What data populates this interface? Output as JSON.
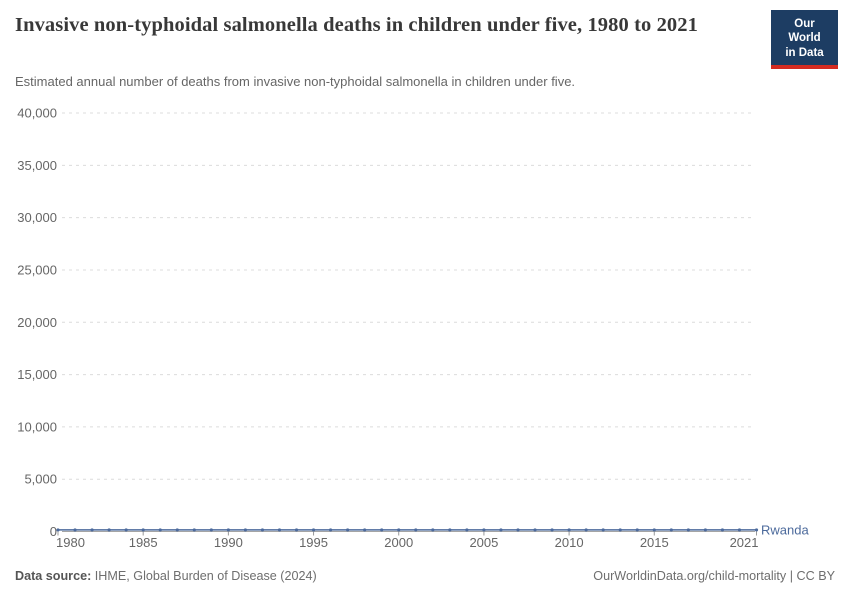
{
  "header": {
    "title": "Invasive non-typhoidal salmonella deaths in children under five, 1980 to 2021",
    "subtitle": "Estimated annual number of deaths from invasive non-typhoidal salmonella in children under five."
  },
  "logo": {
    "line1": "Our World",
    "line2": "in Data",
    "bg_color": "#1d3d63",
    "stripe_color": "#d42b21"
  },
  "chart_data": {
    "type": "line",
    "title": "Invasive non-typhoidal salmonella deaths in children under five, 1980 to 2021",
    "xlabel": "",
    "ylabel": "",
    "xlim": [
      1980,
      2021
    ],
    "ylim": [
      0,
      40000
    ],
    "grid": "horizontal-dashed",
    "legend": "entity-label-at-line-end",
    "x": [
      1980,
      1981,
      1982,
      1983,
      1984,
      1985,
      1986,
      1987,
      1988,
      1989,
      1990,
      1991,
      1992,
      1993,
      1994,
      1995,
      1996,
      1997,
      1998,
      1999,
      2000,
      2001,
      2002,
      2003,
      2004,
      2005,
      2006,
      2007,
      2008,
      2009,
      2010,
      2011,
      2012,
      2013,
      2014,
      2015,
      2016,
      2017,
      2018,
      2019,
      2020,
      2021
    ],
    "series": [
      {
        "name": "Rwanda",
        "color": "#4c6a9c",
        "values": [
          150,
          150,
          150,
          150,
          150,
          150,
          150,
          150,
          150,
          150,
          150,
          150,
          150,
          150,
          150,
          150,
          150,
          150,
          150,
          150,
          150,
          150,
          150,
          150,
          150,
          150,
          150,
          150,
          150,
          150,
          150,
          150,
          150,
          150,
          150,
          150,
          150,
          150,
          150,
          150,
          150,
          150
        ]
      }
    ],
    "yticks": [
      {
        "value": 0,
        "label": "0"
      },
      {
        "value": 5000,
        "label": "5,000"
      },
      {
        "value": 10000,
        "label": "10,000"
      },
      {
        "value": 15000,
        "label": "15,000"
      },
      {
        "value": 20000,
        "label": "20,000"
      },
      {
        "value": 25000,
        "label": "25,000"
      },
      {
        "value": 30000,
        "label": "30,000"
      },
      {
        "value": 35000,
        "label": "35,000"
      },
      {
        "value": 40000,
        "label": "40,000"
      }
    ],
    "xticks": [
      {
        "value": 1980,
        "label": "1980"
      },
      {
        "value": 1985,
        "label": "1985"
      },
      {
        "value": 1990,
        "label": "1990"
      },
      {
        "value": 1995,
        "label": "1995"
      },
      {
        "value": 2000,
        "label": "2000"
      },
      {
        "value": 2005,
        "label": "2005"
      },
      {
        "value": 2010,
        "label": "2010"
      },
      {
        "value": 2015,
        "label": "2015"
      },
      {
        "value": 2021,
        "label": "2021"
      }
    ]
  },
  "entity_label": "Rwanda",
  "footer": {
    "source_label": "Data source:",
    "source_text": " IHME, Global Burden of Disease (2024)",
    "right_text": "OurWorldinData.org/child-mortality | CC BY"
  },
  "colors": {
    "line": "#4c6a9c",
    "grid": "#dcdcdc",
    "zero_axis": "#a5a5a5",
    "tick": "#999999",
    "axis_text": "#666666",
    "title_text": "#383838",
    "subtitle_text": "#666666",
    "footer_text": "#6e6e6e"
  }
}
